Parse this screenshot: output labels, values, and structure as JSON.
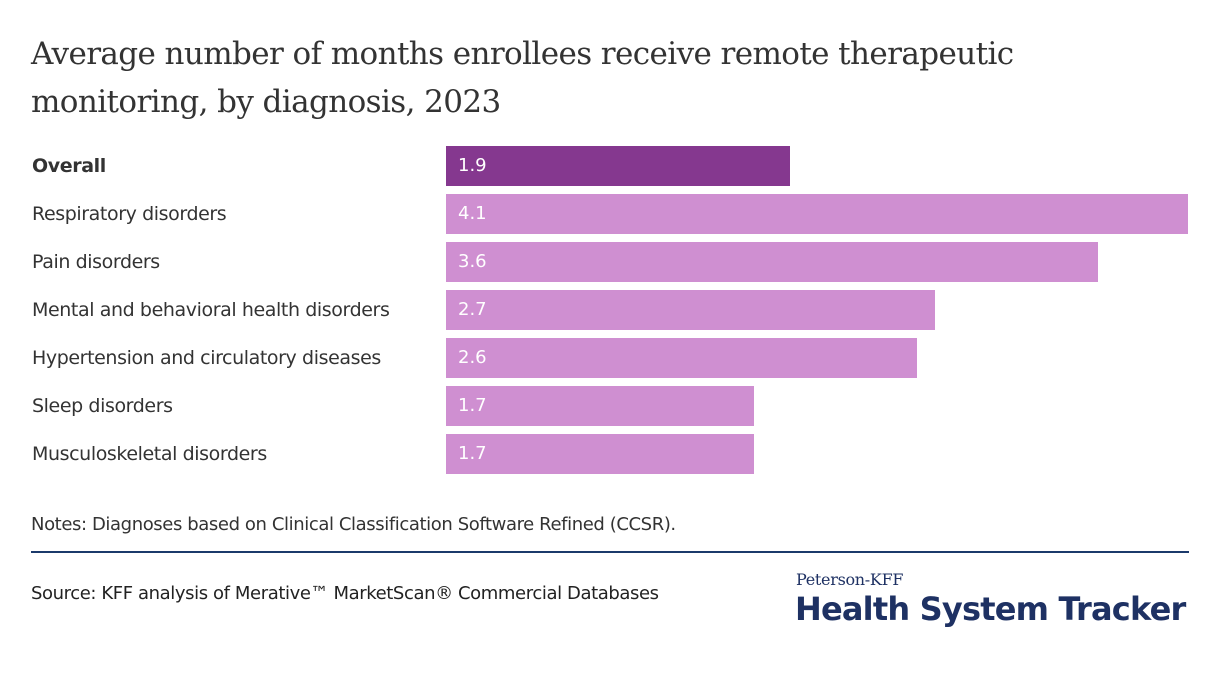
{
  "colors": {
    "highlight_bar": "#85388f",
    "bar": "#cf8fd1",
    "text": "#333333",
    "divider": "#1b3a6b",
    "brand": "#1e3163"
  },
  "chart_data": {
    "type": "bar",
    "orientation": "horizontal",
    "title": "Average number of months enrollees receive remote therapeutic monitoring, by diagnosis, 2023",
    "xlabel": "",
    "ylabel": "",
    "xlim": [
      0,
      4.1
    ],
    "grid": false,
    "categories": [
      "Overall",
      "Respiratory disorders",
      "Pain disorders",
      "Mental and behavioral health disorders",
      "Hypertension and circulatory diseases",
      "Sleep disorders",
      "Musculoskeletal disorders"
    ],
    "values": [
      1.9,
      4.1,
      3.6,
      2.7,
      2.6,
      1.7,
      1.7
    ],
    "value_labels": [
      "1.9",
      "4.1",
      "3.6",
      "2.7",
      "2.6",
      "1.7",
      "1.7"
    ],
    "highlighted": [
      "Overall"
    ]
  },
  "notes": "Notes: Diagnoses based on Clinical Classification Software Refined (CCSR).",
  "source": "Source: KFF analysis of Merative™ MarketScan® Commercial Databases",
  "logo": {
    "top": "Peterson-KFF",
    "main": "Health System Tracker"
  }
}
